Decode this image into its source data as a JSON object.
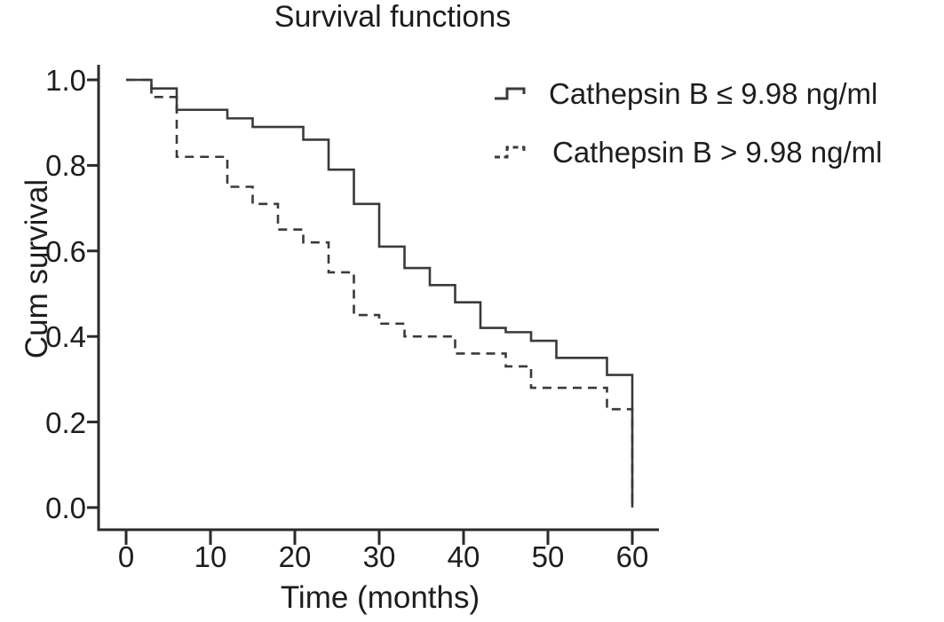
{
  "title": "Survival functions",
  "axes": {
    "x": {
      "label": "Time (months)"
    },
    "y": {
      "label": "Cum survival"
    }
  },
  "legend": [
    {
      "label": "Cathepsin B ≤ 9.98 ng/ml",
      "style": "solid"
    },
    {
      "label": "Cathepsin B > 9.98 ng/ml",
      "style": "dashed"
    }
  ],
  "colors": {
    "line": "#3a3a3a",
    "axis": "#2a2a2a",
    "text": "#1d1d1d",
    "background": "#ffffff"
  },
  "chart_data": {
    "type": "line",
    "subtype": "kaplan-meier-step",
    "title": "Survival functions",
    "xlabel": "Time (months)",
    "ylabel": "Cum survival",
    "xlim": [
      0,
      63
    ],
    "ylim": [
      0.0,
      1.0
    ],
    "x_ticks": [
      0,
      10,
      20,
      30,
      40,
      50,
      60
    ],
    "x_tick_labels": [
      "0",
      "10",
      "20",
      "30",
      "40",
      "50",
      "60"
    ],
    "y_ticks": [
      1.0,
      0.8,
      0.6,
      0.4,
      0.2,
      0.0
    ],
    "y_tick_labels": [
      "1.0",
      "0.8",
      "0.6",
      "0.4",
      "0.2",
      "0.0"
    ],
    "grid": false,
    "legend_position": "top-right",
    "series": [
      {
        "name": "Cathepsin B ≤ 9.98 ng/ml",
        "line_style": "solid",
        "color": "#3a3a3a",
        "points_note": "each [time_months, cum_survival]; curve steps down to value at that time",
        "points": [
          [
            0,
            1.0
          ],
          [
            3,
            0.98
          ],
          [
            6,
            0.93
          ],
          [
            12,
            0.91
          ],
          [
            15,
            0.89
          ],
          [
            21,
            0.86
          ],
          [
            24,
            0.79
          ],
          [
            27,
            0.71
          ],
          [
            30,
            0.61
          ],
          [
            33,
            0.56
          ],
          [
            36,
            0.52
          ],
          [
            39,
            0.48
          ],
          [
            42,
            0.42
          ],
          [
            45,
            0.41
          ],
          [
            48,
            0.39
          ],
          [
            51,
            0.35
          ],
          [
            57,
            0.31
          ],
          [
            60,
            0.0
          ]
        ]
      },
      {
        "name": "Cathepsin B > 9.98 ng/ml",
        "line_style": "dashed",
        "color": "#3a3a3a",
        "points": [
          [
            0,
            1.0
          ],
          [
            3,
            0.96
          ],
          [
            6,
            0.82
          ],
          [
            12,
            0.75
          ],
          [
            15,
            0.71
          ],
          [
            18,
            0.65
          ],
          [
            21,
            0.62
          ],
          [
            24,
            0.55
          ],
          [
            27,
            0.45
          ],
          [
            30,
            0.43
          ],
          [
            33,
            0.4
          ],
          [
            39,
            0.36
          ],
          [
            45,
            0.33
          ],
          [
            48,
            0.28
          ],
          [
            57,
            0.23
          ],
          [
            60,
            0.0
          ]
        ]
      }
    ]
  }
}
